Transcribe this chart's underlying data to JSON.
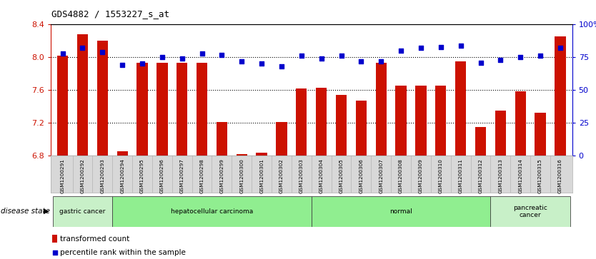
{
  "title": "GDS4882 / 1553227_s_at",
  "samples": [
    "GSM1200291",
    "GSM1200292",
    "GSM1200293",
    "GSM1200294",
    "GSM1200295",
    "GSM1200296",
    "GSM1200297",
    "GSM1200298",
    "GSM1200299",
    "GSM1200300",
    "GSM1200301",
    "GSM1200302",
    "GSM1200303",
    "GSM1200304",
    "GSM1200305",
    "GSM1200306",
    "GSM1200307",
    "GSM1200308",
    "GSM1200309",
    "GSM1200310",
    "GSM1200311",
    "GSM1200312",
    "GSM1200313",
    "GSM1200314",
    "GSM1200315",
    "GSM1200316"
  ],
  "bar_values": [
    8.02,
    8.28,
    8.2,
    6.85,
    7.93,
    7.93,
    7.93,
    7.93,
    7.21,
    6.82,
    6.83,
    7.21,
    7.62,
    7.63,
    7.54,
    7.47,
    7.93,
    7.65,
    7.65,
    7.65,
    7.95,
    7.15,
    7.35,
    7.58,
    7.32,
    8.26
  ],
  "percentile_values": [
    78,
    82,
    79,
    69,
    70,
    75,
    74,
    78,
    77,
    72,
    70,
    68,
    76,
    74,
    76,
    72,
    72,
    80,
    82,
    83,
    84,
    71,
    73,
    75,
    76,
    82
  ],
  "bar_color": "#cc1100",
  "dot_color": "#0000cc",
  "ylim_left": [
    6.8,
    8.4
  ],
  "ylim_right": [
    0,
    100
  ],
  "yticks_left": [
    6.8,
    7.2,
    7.6,
    8.0,
    8.4
  ],
  "yticks_right": [
    0,
    25,
    50,
    75,
    100
  ],
  "ytick_labels_right": [
    "0",
    "25",
    "50",
    "75",
    "100%"
  ],
  "grid_values": [
    8.0,
    7.6,
    7.2
  ],
  "bar_width": 0.55,
  "group_boundaries": [
    [
      0,
      3,
      "gastric cancer",
      "#c8f0c8"
    ],
    [
      3,
      13,
      "hepatocellular carcinoma",
      "#90EE90"
    ],
    [
      13,
      22,
      "normal",
      "#90EE90"
    ],
    [
      22,
      26,
      "pancreatic\ncancer",
      "#c8f0c8"
    ]
  ],
  "xtick_bg_color": "#d8d8d8",
  "fig_bg": "#ffffff"
}
